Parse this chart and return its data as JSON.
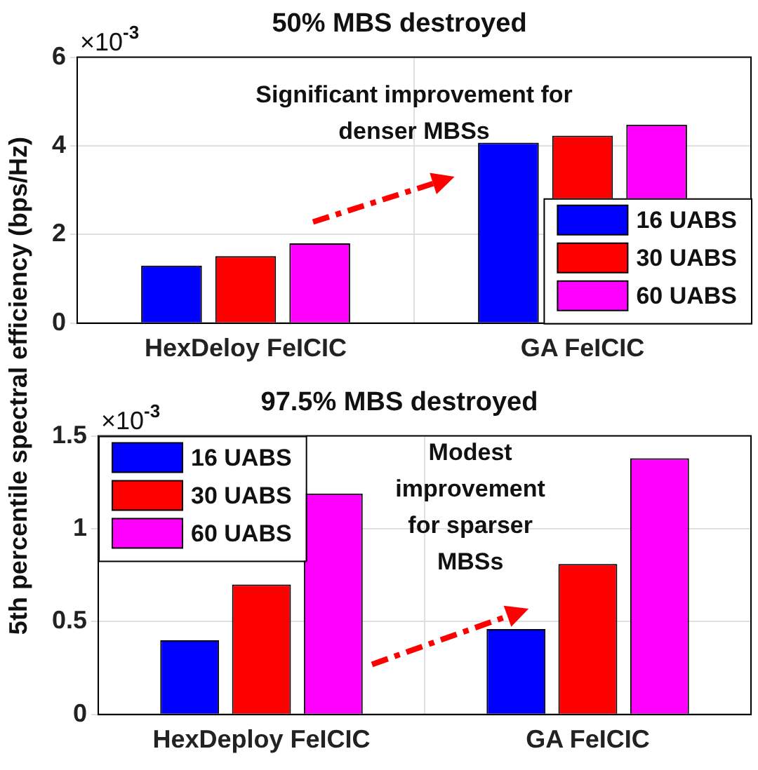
{
  "chart_data": [
    {
      "type": "bar",
      "title": "50% MBS destroyed",
      "ylabel": "5th percentile spectral efficiency (bps/Hz)",
      "categories": [
        "HexDeloy FeICIC",
        "GA FeICIC"
      ],
      "series": [
        {
          "name": "16 UABS",
          "color": "#0000ff",
          "values": [
            1.3,
            4.07
          ]
        },
        {
          "name": "30 UABS",
          "color": "#ff0000",
          "values": [
            1.51,
            4.23
          ]
        },
        {
          "name": "60 UABS",
          "color": "#ff00ff",
          "values": [
            1.8,
            4.48
          ]
        }
      ],
      "ylim": [
        0,
        6
      ],
      "yticks": [
        0,
        2,
        4,
        6
      ],
      "grid": true,
      "legend": "bottom right",
      "annotations": [
        "×10$^{-3}$",
        "Significant improvement for denser MBSs"
      ]
    },
    {
      "type": "bar",
      "title": "97.5% MBS destroyed",
      "categories": [
        "HexDeploy FeICIC",
        "GA FeICIC"
      ],
      "series": [
        {
          "name": "16 UABS",
          "color": "#0000ff",
          "values": [
            0.4,
            0.46
          ]
        },
        {
          "name": "30 UABS",
          "color": "#ff0000",
          "values": [
            0.7,
            0.81
          ]
        },
        {
          "name": "60 UABS",
          "color": "#ff00ff",
          "values": [
            1.19,
            1.38
          ]
        }
      ],
      "ylim": [
        0,
        1.5
      ],
      "yticks": [
        0,
        0.5,
        1,
        1.5
      ],
      "grid": true,
      "legend": "top left",
      "annotations": [
        "×10$^{-3}$",
        "Modest improvement for sparser MBSs"
      ]
    }
  ]
}
